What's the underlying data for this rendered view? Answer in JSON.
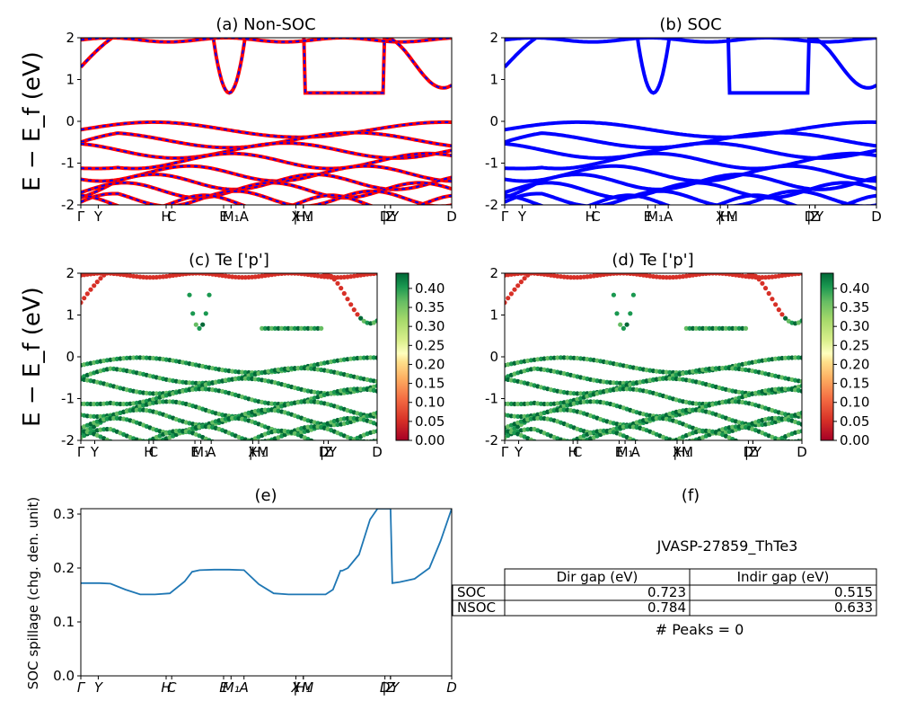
{
  "figure": {
    "ylabel_band": "E − E_f (eV)",
    "kpath_labels": [
      "Γ",
      "Y",
      "H",
      "C",
      "E",
      "M1",
      "A",
      "X",
      "H1",
      "M",
      "D",
      "Z",
      "Y",
      "D"
    ],
    "kpath_tick_text": [
      "Γ",
      "Y",
      "H",
      "C",
      "E",
      "M₁",
      "A",
      "X",
      "H₁",
      "| M",
      "D",
      "Z",
      "| Y",
      "D"
    ]
  },
  "panels": {
    "a": {
      "title": "(a) Non-SOC"
    },
    "b": {
      "title": "(b) SOC"
    },
    "c": {
      "title": "(c)  Te ['p']"
    },
    "d": {
      "title": "(d) Te ['p']"
    },
    "e": {
      "title": "(e)",
      "ylabel": "SOC spillage (chg. den. unit)"
    },
    "f": {
      "title": "(f)"
    }
  },
  "colorbar": {
    "ticks": [
      "0.00",
      "0.05",
      "0.10",
      "0.15",
      "0.20",
      "0.25",
      "0.30",
      "0.35",
      "0.40"
    ],
    "range": [
      0.0,
      0.44
    ],
    "colormap": "RdYlGn"
  },
  "table": {
    "title": "JVASP-27859_ThTe3",
    "headers": [
      "",
      "Dir gap (eV)",
      "Indir gap (eV)"
    ],
    "rows": [
      {
        "label": "SOC",
        "dir": "0.723",
        "indir": "0.515"
      },
      {
        "label": "NSOC",
        "dir": "0.784",
        "indir": "0.633"
      }
    ],
    "peaks": "# Peaks = 0"
  },
  "colors": {
    "soc_band": "#0000ff",
    "nonsoc_band": "#ff0000",
    "spillage_line": "#1f77b4"
  },
  "chart_data": [
    {
      "type": "line",
      "panel": "a",
      "title": "(a) Non-SOC",
      "ylabel": "E − E_f (eV)",
      "ylim": [
        -2,
        2
      ],
      "yticks": [
        -2,
        -1,
        0,
        1,
        2
      ],
      "series_styles": [
        "red solid (non-SOC)",
        "blue dashed overlay"
      ],
      "note": "electronic band structure along k-path"
    },
    {
      "type": "line",
      "panel": "b",
      "title": "(b) SOC",
      "ylim": [
        -2,
        2
      ],
      "yticks": [
        -2,
        -1,
        0,
        1,
        2
      ],
      "series_styles": [
        "blue solid (SOC)"
      ]
    },
    {
      "type": "scatter",
      "panel": "c",
      "title": "(c)  Te ['p']",
      "ylabel": "E − E_f (eV)",
      "ylim": [
        -2,
        2
      ],
      "colorbar_range": [
        0.0,
        0.44
      ]
    },
    {
      "type": "scatter",
      "panel": "d",
      "title": "(d) Te ['p']",
      "ylim": [
        -2,
        2
      ],
      "colorbar_range": [
        0.0,
        0.44
      ]
    },
    {
      "type": "line",
      "panel": "e",
      "title": "(e)",
      "ylabel": "SOC spillage (chg. den. unit)",
      "ylim": [
        0.0,
        0.31
      ],
      "yticks": [
        0.0,
        0.1,
        0.2,
        0.3
      ],
      "x_labels": [
        "Γ",
        "Y",
        "H",
        "C",
        "E",
        "M₁",
        "A",
        "X",
        "H₁",
        "M",
        "D",
        "Z",
        "Y",
        "D"
      ],
      "x": [
        0,
        0.05,
        0.08,
        0.12,
        0.16,
        0.2,
        0.24,
        0.28,
        0.3,
        0.32,
        0.36,
        0.4,
        0.44,
        0.48,
        0.52,
        0.56,
        0.6,
        0.64,
        0.66,
        0.68,
        0.7,
        0.705,
        0.72,
        0.75,
        0.78,
        0.8,
        0.83,
        0.835,
        0.84,
        0.86,
        0.9,
        0.94,
        0.97,
        1.0
      ],
      "y": [
        0.172,
        0.172,
        0.171,
        0.16,
        0.151,
        0.151,
        0.153,
        0.175,
        0.193,
        0.196,
        0.197,
        0.197,
        0.196,
        0.17,
        0.153,
        0.151,
        0.151,
        0.151,
        0.151,
        0.16,
        0.195,
        0.195,
        0.2,
        0.225,
        0.29,
        0.31,
        0.31,
        0.31,
        0.172,
        0.174,
        0.18,
        0.2,
        0.25,
        0.31
      ]
    }
  ]
}
